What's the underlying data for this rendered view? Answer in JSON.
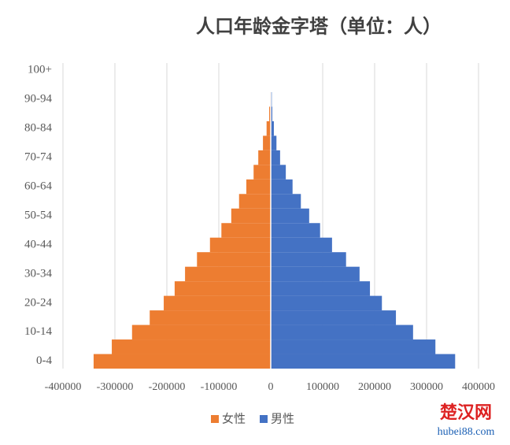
{
  "chart_data": {
    "type": "pyramid",
    "title": "人口年龄金字塔（单位：人）",
    "categories": [
      "0-4",
      null,
      "10-14",
      null,
      "20-24",
      null,
      "30-34",
      null,
      "40-44",
      null,
      "50-54",
      null,
      "60-64",
      null,
      "70-74",
      null,
      "80-84",
      null,
      "90-94",
      null,
      "100+"
    ],
    "series": [
      {
        "name": "女性",
        "color": "#ed7d31",
        "values": [
          -341000,
          -306000,
          -267000,
          -233000,
          -206000,
          -185000,
          -165000,
          -142000,
          -117000,
          -95000,
          -76000,
          -61000,
          -47000,
          -33000,
          -24000,
          -15000,
          -8000,
          -3000,
          -1000,
          0,
          0
        ]
      },
      {
        "name": "男性",
        "color": "#4472c4",
        "values": [
          355000,
          317000,
          274000,
          241000,
          214000,
          191000,
          171000,
          145000,
          118000,
          95000,
          74000,
          58000,
          42000,
          29000,
          18000,
          11000,
          6000,
          3000,
          2000,
          0,
          0
        ]
      }
    ],
    "xlim": [
      -400000,
      400000
    ],
    "xticks": [
      -400000,
      -300000,
      -200000,
      -100000,
      0,
      100000,
      200000,
      300000,
      400000
    ],
    "grid": true,
    "legend": "bottom",
    "annotations": [
      "楚汉网",
      "hubei88.com"
    ]
  }
}
